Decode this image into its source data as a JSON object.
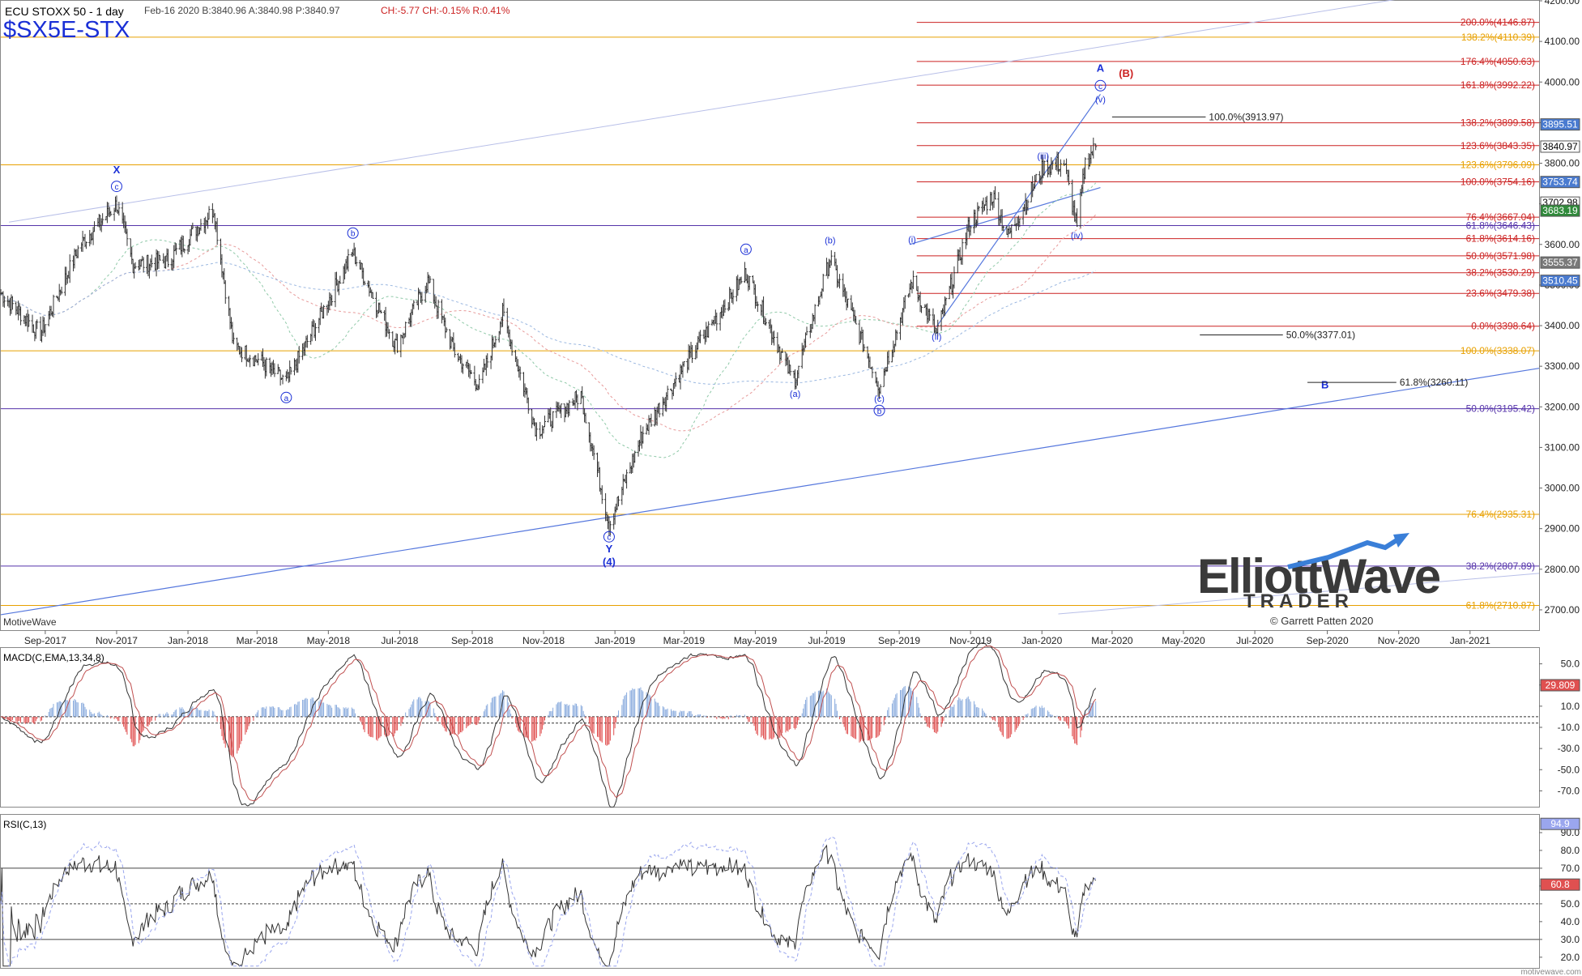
{
  "header": {
    "instrument": "ECU STOXX 50 - 1 day",
    "quote": "Feb-16 2020  B:3840.96  A:3840.98  P:3840.97",
    "change": "CH:-5.77  CH:-0.15%  R:0.41%",
    "symbol": "$SX5E-STX"
  },
  "footer": {
    "vendor": "MotiveWave",
    "site": "motivewave.com"
  },
  "logo": {
    "line1": "ElliottWave",
    "line2": "TRADER",
    "copyright": "© Garrett Patten 2020"
  },
  "colors": {
    "candle": "#333333",
    "fib_red": "#cc2222",
    "fib_orange": "#e8a000",
    "fib_purple": "#5533aa",
    "wave_blue": "#1a2fd6",
    "channel_blue": "#5577dd",
    "macd_pos": "#88aadd",
    "macd_neg": "#e05050",
    "badge_blue": "#4a7bd0"
  },
  "chart_data": [
    {
      "type": "candlestick",
      "panel": "price",
      "ylim": [
        2650,
        4200
      ],
      "y_ticks": [
        "4200.00",
        "4100.00",
        "4000.00",
        "3900.00",
        "3800.00",
        "3700.00",
        "3600.00",
        "3500.00",
        "3400.00",
        "3300.00",
        "3200.00",
        "3100.00",
        "3000.00",
        "2900.00",
        "2800.00",
        "2700.00"
      ],
      "x_ticks": [
        "Sep-2017",
        "Nov-2017",
        "Jan-2018",
        "Mar-2018",
        "May-2018",
        "Jul-2018",
        "Sep-2018",
        "Nov-2018",
        "Jan-2019",
        "Mar-2019",
        "May-2019",
        "Jul-2019",
        "Sep-2019",
        "Nov-2019",
        "Jan-2020",
        "Mar-2020",
        "May-2020",
        "Jul-2020",
        "Sep-2020",
        "Nov-2020",
        "Jan-2021"
      ],
      "x_start": "2017-07-25",
      "x_end": "2021-03-01",
      "last_price": 3840.97,
      "price_path": [
        [
          "2017-07-25",
          3480
        ],
        [
          "2017-08-28",
          3380
        ],
        [
          "2017-10-01",
          3600
        ],
        [
          "2017-11-01",
          3700
        ],
        [
          "2017-11-15",
          3550
        ],
        [
          "2017-12-15",
          3560
        ],
        [
          "2018-01-23",
          3687
        ],
        [
          "2018-02-09",
          3350
        ],
        [
          "2018-03-05",
          3310
        ],
        [
          "2018-03-26",
          3260
        ],
        [
          "2018-05-22",
          3580
        ],
        [
          "2018-06-28",
          3350
        ],
        [
          "2018-07-25",
          3510
        ],
        [
          "2018-08-16",
          3340
        ],
        [
          "2018-09-07",
          3250
        ],
        [
          "2018-09-27",
          3430
        ],
        [
          "2018-10-26",
          3140
        ],
        [
          "2018-12-03",
          3230
        ],
        [
          "2018-12-27",
          2909
        ],
        [
          "2019-01-24",
          3130
        ],
        [
          "2019-03-01",
          3300
        ],
        [
          "2019-04-23",
          3530
        ],
        [
          "2019-05-31",
          3280
        ],
        [
          "2019-06-04",
          3270
        ],
        [
          "2019-07-04",
          3565
        ],
        [
          "2019-08-15",
          3250
        ],
        [
          "2019-09-12",
          3510
        ],
        [
          "2019-10-03",
          3380
        ],
        [
          "2019-10-31",
          3650
        ],
        [
          "2019-11-20",
          3720
        ],
        [
          "2019-12-03",
          3620
        ],
        [
          "2020-01-02",
          3790
        ],
        [
          "2020-01-20",
          3800
        ],
        [
          "2020-01-31",
          3640
        ],
        [
          "2020-02-07",
          3800
        ],
        [
          "2020-02-16",
          3841
        ]
      ],
      "fib_lines": [
        {
          "label": "200.0%(4146.87)",
          "value": 4146.87,
          "color": "red",
          "from": "2019-09-16"
        },
        {
          "label": "138.2%(4110.39)",
          "value": 4110.39,
          "color": "orange",
          "from": "2017-07-25"
        },
        {
          "label": "176.4%(4050.63)",
          "value": 4050.63,
          "color": "red",
          "from": "2019-09-16"
        },
        {
          "label": "161.8%(3992.22)",
          "value": 3992.22,
          "color": "red",
          "from": "2019-09-16"
        },
        {
          "label": "138.2%(3899.58)",
          "value": 3899.58,
          "color": "red",
          "from": "2019-09-16"
        },
        {
          "label": "123.6%(3843.35)",
          "value": 3843.35,
          "color": "red",
          "from": "2019-09-16"
        },
        {
          "label": "123.6%(3796.09)",
          "value": 3796.09,
          "color": "orange",
          "from": "2017-07-25"
        },
        {
          "label": "100.0%(3754.16)",
          "value": 3754.16,
          "color": "red",
          "from": "2019-09-16"
        },
        {
          "label": "76.4%(3667.04)",
          "value": 3667.04,
          "color": "red",
          "from": "2019-09-16"
        },
        {
          "label": "61.8%(3646.43)",
          "value": 3646.43,
          "color": "purple",
          "from": "2017-07-25"
        },
        {
          "label": "61.8%(3614.16)",
          "value": 3614.16,
          "color": "red",
          "from": "2019-09-16"
        },
        {
          "label": "50.0%(3571.98)",
          "value": 3571.98,
          "color": "red",
          "from": "2019-09-16"
        },
        {
          "label": "38.2%(3530.29)",
          "value": 3530.29,
          "color": "red",
          "from": "2019-09-16"
        },
        {
          "label": "23.6%(3479.38)",
          "value": 3479.38,
          "color": "red",
          "from": "2019-09-16"
        },
        {
          "label": "0.0%(3398.64)",
          "value": 3398.64,
          "color": "red",
          "from": "2019-09-16"
        },
        {
          "label": "100.0%(3338.07)",
          "value": 3338.07,
          "color": "orange",
          "from": "2017-07-25"
        },
        {
          "label": "50.0%(3195.42)",
          "value": 3195.42,
          "color": "purple",
          "from": "2017-07-25"
        },
        {
          "label": "76.4%(2935.31)",
          "value": 2935.31,
          "color": "orange",
          "from": "2017-07-25"
        },
        {
          "label": "38.2%(2807.89)",
          "value": 2807.89,
          "color": "purple",
          "from": "2017-07-25"
        },
        {
          "label": "61.8%(2710.87)",
          "value": 2710.87,
          "color": "orange",
          "from": "2017-07-25"
        }
      ],
      "projections": [
        {
          "label": "100.0%(3913.97)",
          "value": 3913.97,
          "from": "2020-03-01",
          "to": "2020-05-20"
        },
        {
          "label": "50.0%(3377.01)",
          "value": 3377.01,
          "from": "2020-05-15",
          "to": "2020-07-25"
        },
        {
          "label": "61.8%(3260.11)",
          "value": 3260.11,
          "from": "2020-08-15",
          "to": "2020-10-30"
        }
      ],
      "price_badges": [
        {
          "label": "3895.51",
          "value": 3895.51,
          "color": "blue"
        },
        {
          "label": "3840.97",
          "value": 3840.97,
          "color": "white"
        },
        {
          "label": "3753.74",
          "value": 3753.74,
          "color": "blue"
        },
        {
          "label": "3702.98",
          "value": 3702.98,
          "color": "white"
        },
        {
          "label": "3683.19",
          "value": 3683.19,
          "color": "green"
        },
        {
          "label": "3555.37",
          "value": 3555.37,
          "color": "gray"
        },
        {
          "label": "3510.45",
          "value": 3510.45,
          "color": "blue"
        }
      ],
      "wave_labels": [
        {
          "text": "X",
          "x": "2017-11-01",
          "y": 3775,
          "style": "bold"
        },
        {
          "text": "c",
          "x": "2017-11-01",
          "y": 3735,
          "style": "circle"
        },
        {
          "text": "b",
          "x": "2018-05-22",
          "y": 3620,
          "style": "circle"
        },
        {
          "text": "a",
          "x": "2018-03-26",
          "y": 3215,
          "style": "circle"
        },
        {
          "text": "a",
          "x": "2019-04-23",
          "y": 3580,
          "style": "circle"
        },
        {
          "text": "(b)",
          "x": "2019-07-04",
          "y": 3603,
          "style": "plain"
        },
        {
          "text": "(a)",
          "x": "2019-06-04",
          "y": 3225,
          "style": "plain"
        },
        {
          "text": "(c)",
          "x": "2019-08-15",
          "y": 3213,
          "style": "plain"
        },
        {
          "text": "b",
          "x": "2019-08-15",
          "y": 3183,
          "style": "circle"
        },
        {
          "text": "c",
          "x": "2018-12-27",
          "y": 2872,
          "style": "circle"
        },
        {
          "text": "Y",
          "x": "2018-12-27",
          "y": 2842,
          "style": "bold"
        },
        {
          "text": "(4)",
          "x": "2018-12-27",
          "y": 2810,
          "style": "bold"
        },
        {
          "text": "(i)",
          "x": "2019-09-12",
          "y": 3605,
          "style": "plain"
        },
        {
          "text": "(ii)",
          "x": "2019-10-03",
          "y": 3365,
          "style": "plain"
        },
        {
          "text": "(iii)",
          "x": "2020-01-02",
          "y": 3810,
          "style": "plain"
        },
        {
          "text": "(iv)",
          "x": "2020-01-31",
          "y": 3615,
          "style": "plain"
        },
        {
          "text": "(v)",
          "x": "2020-02-20",
          "y": 3950,
          "style": "plain"
        },
        {
          "text": "c",
          "x": "2020-02-20",
          "y": 3983,
          "style": "circle"
        },
        {
          "text": "A",
          "x": "2020-02-20",
          "y": 4025,
          "style": "bold"
        },
        {
          "text": "(B)",
          "x": "2020-03-13",
          "y": 4012,
          "style": "bold-red"
        },
        {
          "text": "B",
          "x": "2020-08-30",
          "y": 3245,
          "style": "bold"
        }
      ]
    },
    {
      "type": "macd",
      "panel": "macd",
      "title": "MACD(C,EMA,13,34,8)",
      "ylim": [
        -85,
        65
      ],
      "y_ticks": [
        "50.0",
        "30.0",
        "10.0",
        "-10.0",
        "-30.0",
        "-50.0",
        "-70.0"
      ],
      "last_value": "29.809"
    },
    {
      "type": "rsi",
      "panel": "rsi",
      "title": "RSI(C,13)",
      "ylim": [
        14,
        100
      ],
      "y_ticks": [
        "90.0",
        "80.0",
        "70.0",
        "60.0",
        "50.0",
        "40.0",
        "30.0",
        "20.0"
      ],
      "overbought": 70,
      "oversold": 30,
      "mid": 50,
      "badges": [
        "94.9",
        "60.8"
      ]
    }
  ]
}
